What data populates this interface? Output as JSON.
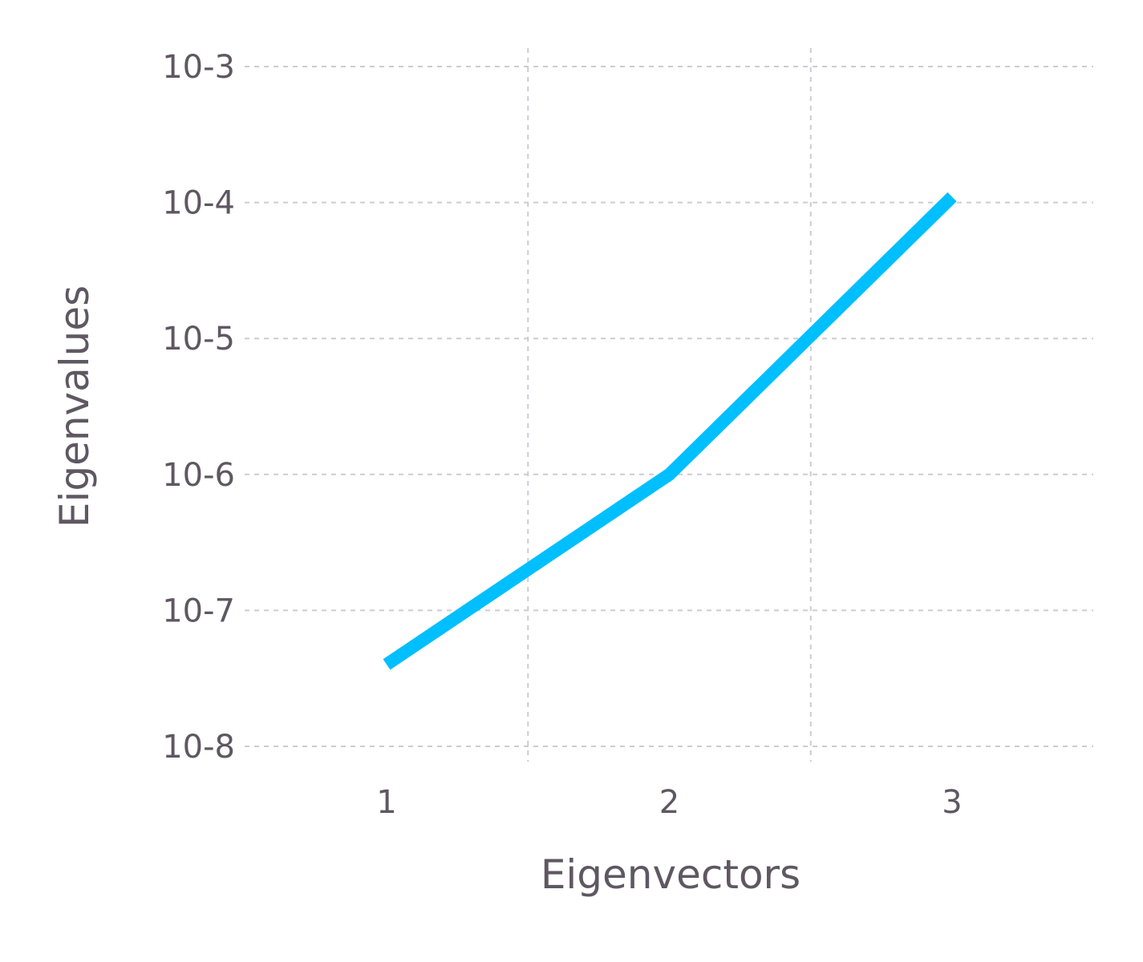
{
  "chart_data": {
    "type": "line",
    "title": "",
    "xlabel": "Eigenvectors",
    "ylabel": "Eigenvalues",
    "x_ticks": [
      1,
      2,
      3
    ],
    "y_scale": "log",
    "y_tick_exponents": [
      -3,
      -4,
      -5,
      -6,
      -7,
      -8
    ],
    "y_tick_base": "10",
    "xlim": [
      0.5,
      3.5
    ],
    "ylim": [
      1e-08,
      0.001
    ],
    "grid": true,
    "series": [
      {
        "color": "#00bfff",
        "x": [
          1,
          2,
          3
        ],
        "y": [
          4e-08,
          1e-06,
          0.00011
        ]
      }
    ]
  }
}
